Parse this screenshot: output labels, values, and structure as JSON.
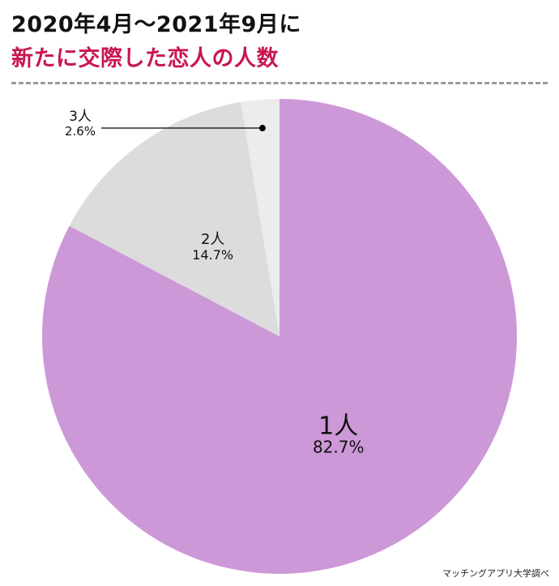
{
  "header": {
    "title_line1": "2020年4月〜2021年9月に",
    "title_line2": "新たに交際した恋人の人数"
  },
  "colors": {
    "title_accent": "#c8174f",
    "slice_1": "#cd98d8",
    "slice_2": "#dcdcdc",
    "slice_3": "#ececec"
  },
  "source": "マッチングアプリ大学調べ",
  "chart_data": {
    "type": "pie",
    "title": "2020年4月〜2021年9月に 新たに交際した恋人の人数",
    "categories": [
      "1人",
      "2人",
      "3人"
    ],
    "values": [
      82.7,
      14.7,
      2.6
    ],
    "value_labels": [
      "82.7%",
      "14.7%",
      "2.6%"
    ],
    "colors": [
      "#cd98d8",
      "#dcdcdc",
      "#ececec"
    ],
    "start": "12 o'clock",
    "direction": "clockwise",
    "legend": "none"
  }
}
